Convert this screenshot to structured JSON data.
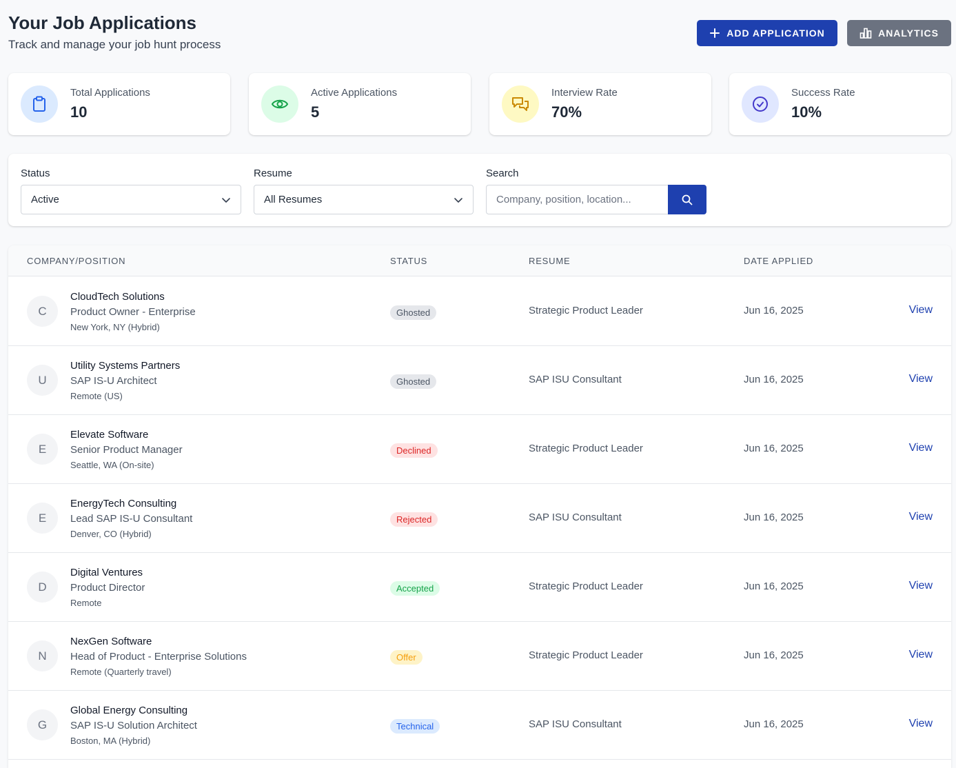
{
  "header": {
    "title": "Your Job Applications",
    "subtitle": "Track and manage your job hunt process",
    "add_button": "ADD APPLICATION",
    "analytics_button": "ANALYTICS"
  },
  "stats": [
    {
      "label": "Total Applications",
      "value": "10",
      "icon": "clipboard-icon",
      "icon_bg": "#dbeafe",
      "icon_color": "#2563eb"
    },
    {
      "label": "Active Applications",
      "value": "5",
      "icon": "eye-icon",
      "icon_bg": "#dcfce7",
      "icon_color": "#16a34a"
    },
    {
      "label": "Interview Rate",
      "value": "70%",
      "icon": "chat-icon",
      "icon_bg": "#fef9c3",
      "icon_color": "#ca8a04"
    },
    {
      "label": "Success Rate",
      "value": "10%",
      "icon": "check-circle-icon",
      "icon_bg": "#e0e7ff",
      "icon_color": "#4338ca"
    }
  ],
  "filters": {
    "status_label": "Status",
    "status_value": "Active",
    "resume_label": "Resume",
    "resume_value": "All Resumes",
    "search_label": "Search",
    "search_placeholder": "Company, position, location..."
  },
  "table": {
    "columns": [
      "COMPANY/POSITION",
      "STATUS",
      "RESUME",
      "DATE APPLIED"
    ],
    "rows": [
      {
        "initial": "C",
        "company": "CloudTech Solutions",
        "position": "Product Owner - Enterprise",
        "location": "New York, NY (Hybrid)",
        "status": "Ghosted",
        "resume": "Strategic Product Leader",
        "date": "Jun 16, 2025",
        "action": "View"
      },
      {
        "initial": "U",
        "company": "Utility Systems Partners",
        "position": "SAP IS-U Architect",
        "location": "Remote (US)",
        "status": "Ghosted",
        "resume": "SAP ISU Consultant",
        "date": "Jun 16, 2025",
        "action": "View"
      },
      {
        "initial": "E",
        "company": "Elevate Software",
        "position": "Senior Product Manager",
        "location": "Seattle, WA (On-site)",
        "status": "Declined",
        "resume": "Strategic Product Leader",
        "date": "Jun 16, 2025",
        "action": "View"
      },
      {
        "initial": "E",
        "company": "EnergyTech Consulting",
        "position": "Lead SAP IS-U Consultant",
        "location": "Denver, CO (Hybrid)",
        "status": "Rejected",
        "resume": "SAP ISU Consultant",
        "date": "Jun 16, 2025",
        "action": "View"
      },
      {
        "initial": "D",
        "company": "Digital Ventures",
        "position": "Product Director",
        "location": "Remote",
        "status": "Accepted",
        "resume": "Strategic Product Leader",
        "date": "Jun 16, 2025",
        "action": "View"
      },
      {
        "initial": "N",
        "company": "NexGen Software",
        "position": "Head of Product - Enterprise Solutions",
        "location": "Remote (Quarterly travel)",
        "status": "Offer",
        "resume": "Strategic Product Leader",
        "date": "Jun 16, 2025",
        "action": "View"
      },
      {
        "initial": "G",
        "company": "Global Energy Consulting",
        "position": "SAP IS-U Solution Architect",
        "location": "Boston, MA (Hybrid)",
        "status": "Technical",
        "resume": "SAP ISU Consultant",
        "date": "Jun 16, 2025",
        "action": "View"
      }
    ]
  },
  "status_colors": {
    "Ghosted": {
      "bg": "#e5e7eb",
      "fg": "#4b5563"
    },
    "Declined": {
      "bg": "#fee2e2",
      "fg": "#dc2626"
    },
    "Rejected": {
      "bg": "#fee2e2",
      "fg": "#dc2626"
    },
    "Accepted": {
      "bg": "#dcfce7",
      "fg": "#16a34a"
    },
    "Offer": {
      "bg": "#fef3c7",
      "fg": "#f59e0b"
    },
    "Technical": {
      "bg": "#dbeafe",
      "fg": "#2563eb"
    }
  }
}
